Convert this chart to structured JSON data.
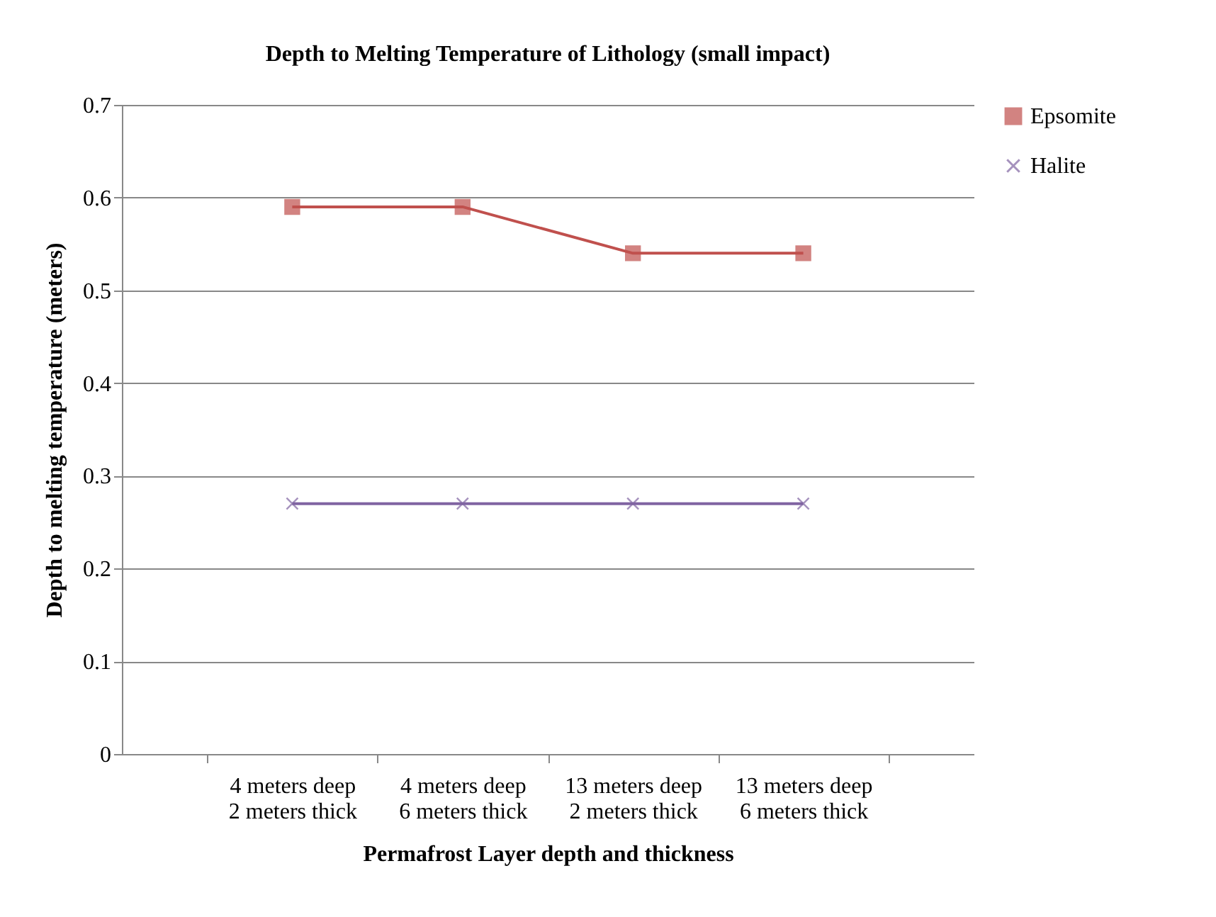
{
  "chart_data": {
    "type": "line",
    "title": "Depth to Melting Temperature of Lithology (small impact)",
    "xlabel": "Permafrost Layer depth and thickness",
    "ylabel": "Depth to melting temperature (meters)",
    "categories": [
      "4 meters deep\n2 meters thick",
      "4 meters deep\n6 meters thick",
      "13 meters deep\n2 meters thick",
      "13 meters deep\n6 meters thick"
    ],
    "series": [
      {
        "name": "Epsomite",
        "color": "#c0504d",
        "marker": "square",
        "values": [
          0.59,
          0.59,
          0.54,
          0.54
        ]
      },
      {
        "name": "Halite",
        "color": "#8064a2",
        "marker": "cross",
        "values": [
          0.27,
          0.27,
          0.27,
          0.27
        ]
      }
    ],
    "ylim": [
      0,
      0.7
    ],
    "yticks": [
      {
        "value": 0,
        "label": "0"
      },
      {
        "value": 0.1,
        "label": "0.1"
      },
      {
        "value": 0.2,
        "label": "0.2"
      },
      {
        "value": 0.3,
        "label": "0.3"
      },
      {
        "value": 0.4,
        "label": "0.4"
      },
      {
        "value": 0.5,
        "label": "0.5"
      },
      {
        "value": 0.6,
        "label": "0.6"
      },
      {
        "value": 0.7,
        "label": "0.7"
      }
    ],
    "grid": "y",
    "legend": "right"
  }
}
